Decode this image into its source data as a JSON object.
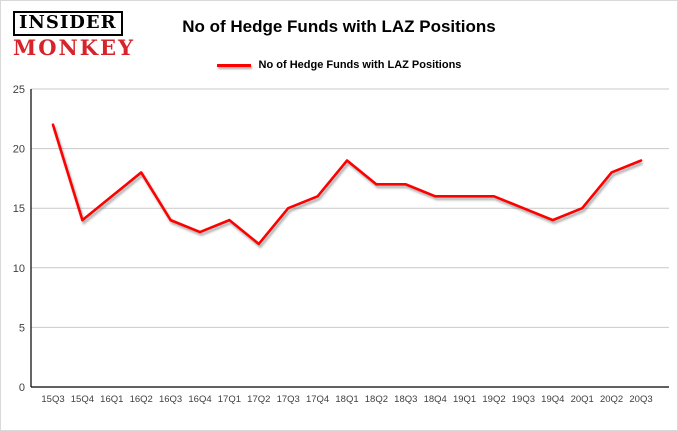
{
  "logo": {
    "line1": "INSIDER",
    "line2": "MONKEY",
    "brand_red": "#d8232a"
  },
  "header": {
    "title": "No of Hedge Funds with LAZ Positions"
  },
  "legend": {
    "label": "No of Hedge Funds with LAZ Positions",
    "line_color": "#ff0000"
  },
  "chart_data": {
    "type": "line",
    "title": "No of Hedge Funds with LAZ Positions",
    "series_name": "No of Hedge Funds with LAZ Positions",
    "categories": [
      "15Q3",
      "15Q4",
      "16Q1",
      "16Q2",
      "16Q3",
      "16Q4",
      "17Q1",
      "17Q2",
      "17Q3",
      "17Q4",
      "18Q1",
      "18Q2",
      "18Q3",
      "18Q4",
      "19Q1",
      "19Q2",
      "19Q3",
      "19Q4",
      "20Q1",
      "20Q2",
      "20Q3"
    ],
    "values": [
      22,
      14,
      16,
      18,
      14,
      13,
      14,
      12,
      15,
      16,
      19,
      17,
      17,
      16,
      16,
      16,
      15,
      14,
      15,
      18,
      19
    ],
    "xlabel": "",
    "ylabel": "",
    "ylim": [
      0,
      25
    ],
    "yticks": [
      0,
      5,
      10,
      15,
      20,
      25
    ],
    "grid": true,
    "legend_position": "top",
    "line_color": "#ff0000",
    "grid_color": "#c9c9c9",
    "axis_color": "#000000",
    "tick_label_color": "#3f3f3f"
  }
}
